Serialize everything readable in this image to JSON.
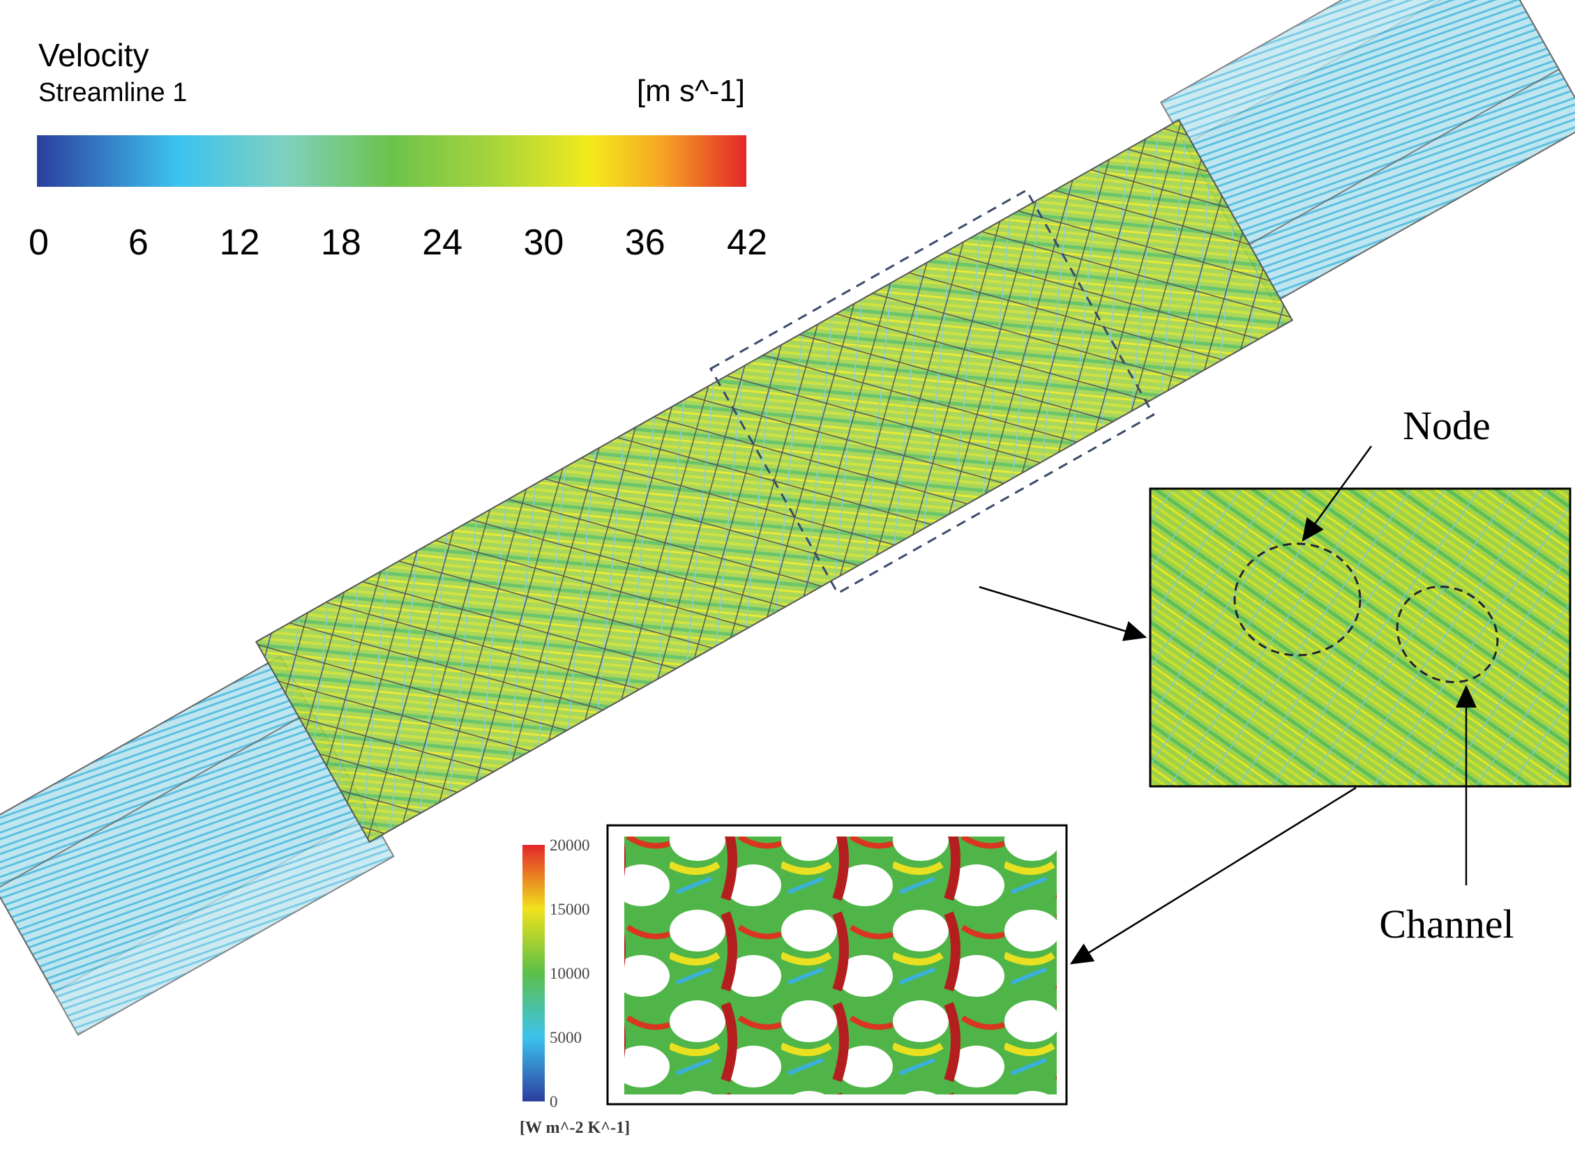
{
  "legend": {
    "title": "Velocity",
    "subtitle": "Streamline 1",
    "unit": "[m s^-1]",
    "ticks": [
      0,
      6,
      12,
      18,
      24,
      30,
      36,
      42
    ]
  },
  "inset_legend": {
    "ticks": [
      0,
      5000,
      10000,
      15000,
      20000
    ],
    "unit": "[W m^-2 K^-1]"
  },
  "annotations": {
    "node": "Node",
    "channel": "Channel"
  }
}
